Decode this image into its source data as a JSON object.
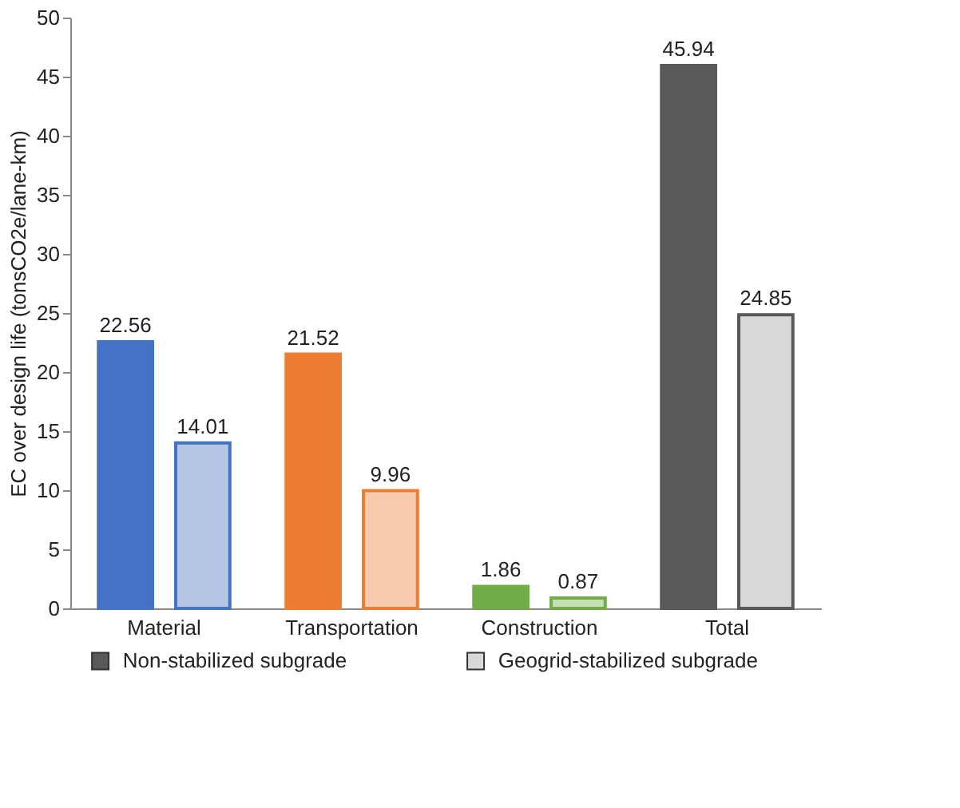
{
  "chart_data": {
    "type": "bar",
    "ylabel": "EC over design life (tonsCO2e/lane-km)",
    "categories": [
      "Material",
      "Transportation",
      "Construction",
      "Total"
    ],
    "series": [
      {
        "name": "Non-stabilized subgrade",
        "color": "#595959",
        "colors": [
          "#4472c4",
          "#ed7d31",
          "#70ad47",
          "#595959"
        ],
        "values": [
          22.56,
          21.52,
          1.86,
          45.94
        ]
      },
      {
        "name": "Geogrid-stabilized subgrade",
        "color": "#d9d9d9",
        "colors": [
          "#b4c7e7",
          "#f8cbad",
          "#c5e0b4",
          "#d9d9d9"
        ],
        "values": [
          14.01,
          9.96,
          0.87,
          24.85
        ]
      }
    ],
    "ylim": [
      0,
      50
    ],
    "yticks": [
      0,
      5,
      10,
      15,
      20,
      25,
      30,
      35,
      40,
      45,
      50
    ],
    "grid": false,
    "legend": "bottom",
    "data_labels": true
  }
}
